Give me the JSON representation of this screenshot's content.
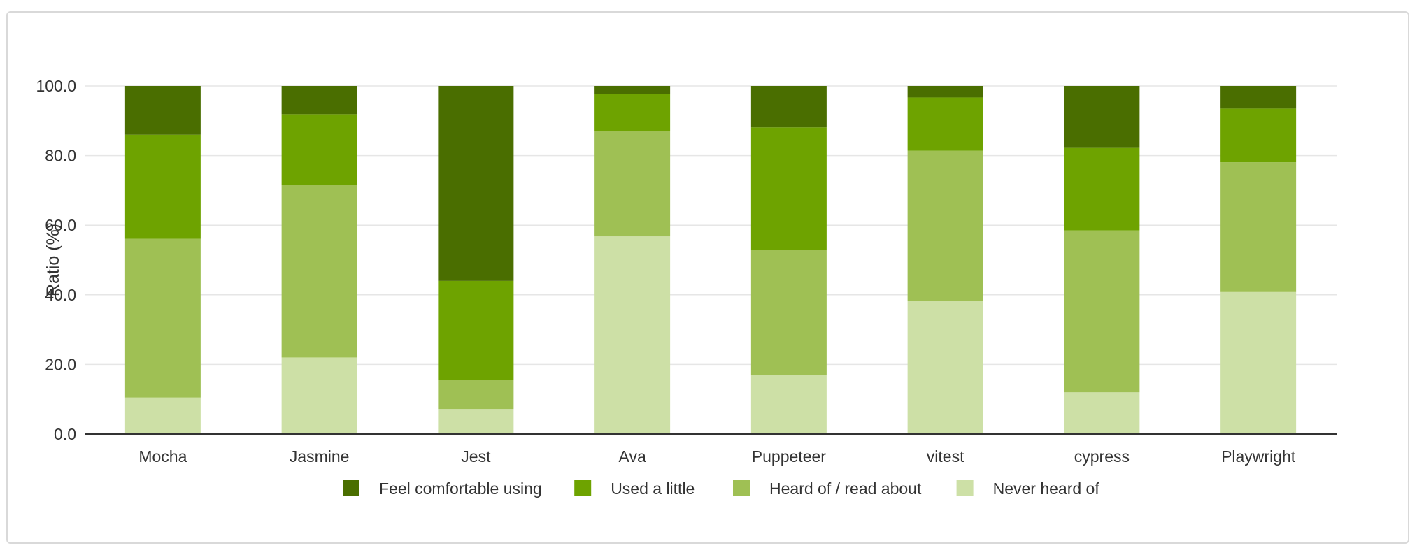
{
  "chart_data": {
    "type": "bar",
    "stacked": true,
    "title": "",
    "xlabel": "",
    "ylabel": "Ratio (%)",
    "ylim": [
      0,
      100
    ],
    "yticks": [
      "0.0",
      "20.0",
      "40.0",
      "60.0",
      "80.0",
      "100.0"
    ],
    "grid": true,
    "legend_position": "bottom",
    "categories": [
      "Mocha",
      "Jasmine",
      "Jest",
      "Ava",
      "Puppeteer",
      "vitest",
      "cypress",
      "Playwright"
    ],
    "series": [
      {
        "name": "Never heard of",
        "color": "#cde0a6",
        "values": [
          10.5,
          22.0,
          7.2,
          56.8,
          17.0,
          38.3,
          12.0,
          40.8
        ]
      },
      {
        "name": "Heard of / read about",
        "color": "#9fc054",
        "values": [
          45.6,
          49.6,
          8.3,
          30.2,
          35.9,
          43.1,
          46.5,
          37.3
        ]
      },
      {
        "name": "Used a little",
        "color": "#6ea300",
        "values": [
          29.9,
          20.3,
          28.5,
          10.7,
          35.2,
          15.3,
          23.7,
          15.4
        ]
      },
      {
        "name": "Feel comfortable using",
        "color": "#4a6e00",
        "values": [
          14.0,
          8.1,
          56.0,
          2.3,
          11.9,
          3.3,
          17.8,
          6.5
        ]
      }
    ],
    "legend_order": [
      "Feel comfortable using",
      "Used a little",
      "Heard of / read about",
      "Never heard of"
    ]
  }
}
